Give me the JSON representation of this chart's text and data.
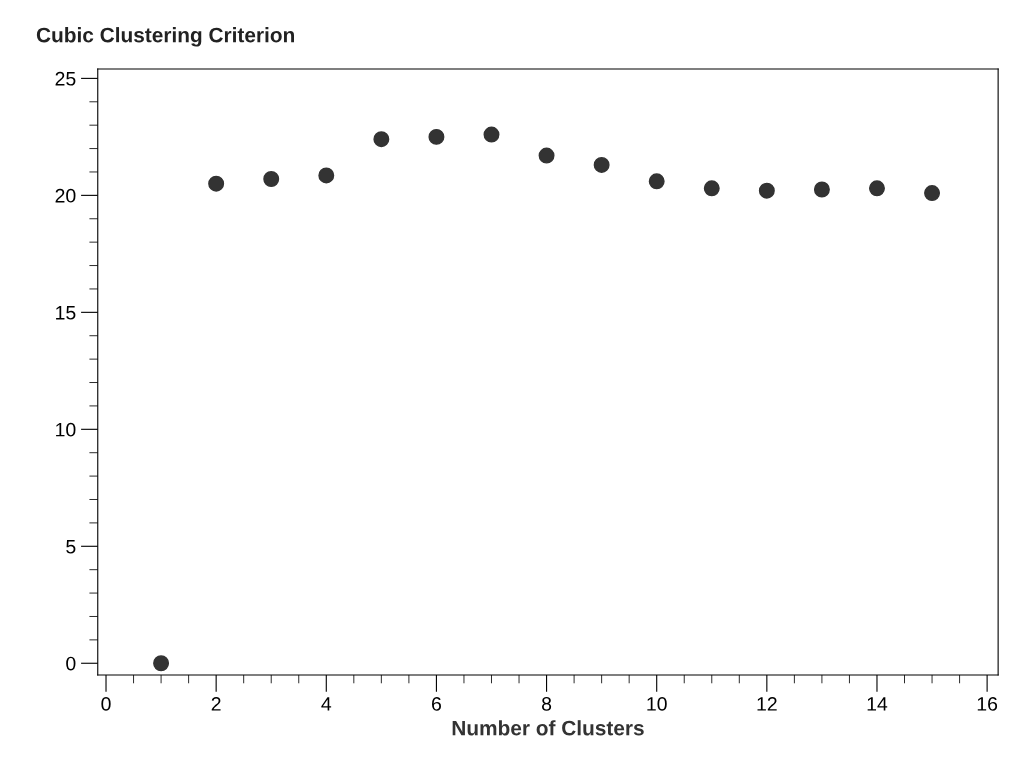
{
  "chart_data": {
    "type": "scatter",
    "ylabel": "Cubic Clustering Criterion",
    "xlabel": "Number of Clusters",
    "x": [
      1,
      2,
      3,
      4,
      5,
      6,
      7,
      8,
      9,
      10,
      11,
      12,
      13,
      14,
      15
    ],
    "values": [
      0,
      20.5,
      20.7,
      20.85,
      22.4,
      22.5,
      22.6,
      21.7,
      21.3,
      20.6,
      20.3,
      20.2,
      20.25,
      20.3,
      20.1
    ],
    "color": "#333333",
    "marker": "circle",
    "xlim": [
      -0.15,
      16.2
    ],
    "ylim": [
      -0.5,
      25.4
    ],
    "xticks": [
      0,
      2,
      4,
      6,
      8,
      10,
      12,
      14,
      16
    ],
    "yticks": [
      0,
      5,
      10,
      15,
      20,
      25
    ],
    "grid": false
  }
}
